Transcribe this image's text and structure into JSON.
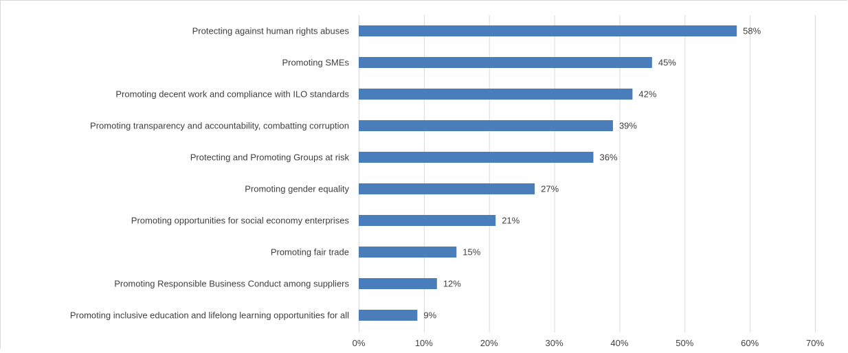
{
  "chart_data": {
    "type": "bar",
    "orientation": "horizontal",
    "title": "",
    "xlabel": "",
    "ylabel": "",
    "categories": [
      "Protecting against human rights abuses",
      "Promoting SMEs",
      "Promoting decent work and compliance with ILO standards",
      "Promoting transparency and accountability, combatting corruption",
      "Protecting and Promoting Groups at risk",
      "Promoting gender equality",
      "Promoting opportunities for social economy enterprises",
      "Promoting fair trade",
      "Promoting Responsible Business Conduct among suppliers",
      "Promoting inclusive  education and lifelong learning opportunities for all"
    ],
    "values": [
      58,
      45,
      42,
      39,
      36,
      27,
      21,
      15,
      12,
      9
    ],
    "data_labels": [
      "58%",
      "45%",
      "42%",
      "39%",
      "36%",
      "27%",
      "21%",
      "15%",
      "12%",
      "9%"
    ],
    "xlim": [
      0,
      70
    ],
    "x_ticks": [
      0,
      10,
      20,
      30,
      40,
      50,
      60,
      70
    ],
    "x_tick_labels": [
      "0%",
      "10%",
      "20%",
      "30%",
      "40%",
      "50%",
      "60%",
      "70%"
    ],
    "grid": true,
    "legend": "none",
    "colors": {
      "bar": "#4a7ebb",
      "grid": "#d9d9d9",
      "text": "#404040"
    }
  }
}
